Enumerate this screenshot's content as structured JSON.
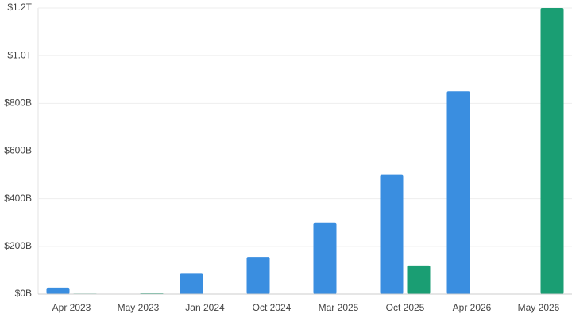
{
  "chart_data": {
    "type": "bar",
    "categories": [
      "Apr 2023",
      "May 2023",
      "Jan 2024",
      "Oct 2024",
      "Mar 2025",
      "Oct 2025",
      "Apr 2026",
      "May 2026"
    ],
    "series": [
      {
        "color": "#3a8ee0",
        "values": [
          27,
          null,
          85,
          156,
          300,
          500,
          850,
          null
        ]
      },
      {
        "color": "#1a9e73",
        "values": [
          2,
          3,
          null,
          null,
          null,
          120,
          null,
          1200
        ]
      }
    ],
    "ylim": [
      0,
      1200
    ],
    "yticks": [
      {
        "value": 0,
        "label": "$0B"
      },
      {
        "value": 200,
        "label": "$200B"
      },
      {
        "value": 400,
        "label": "$400B"
      },
      {
        "value": 600,
        "label": "$600B"
      },
      {
        "value": 800,
        "label": "$800B"
      },
      {
        "value": 1000,
        "label": "$1.0T"
      },
      {
        "value": 1200,
        "label": "$1.2T"
      }
    ],
    "grid": true
  }
}
